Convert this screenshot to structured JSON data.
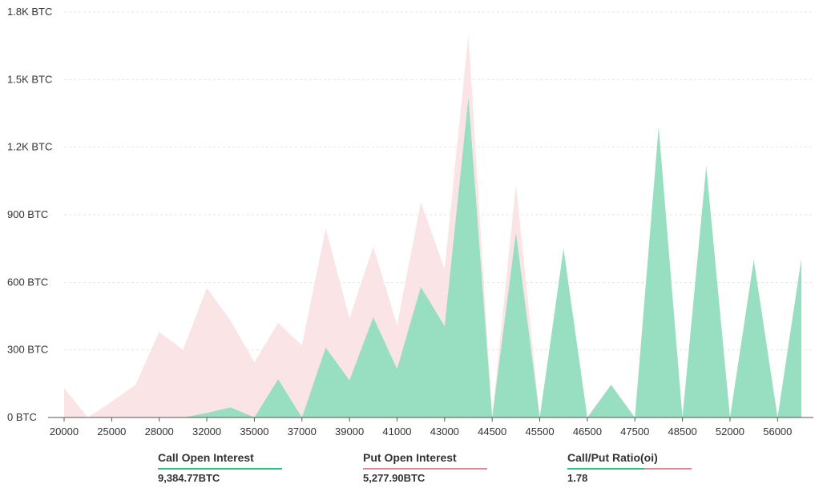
{
  "colors": {
    "call": "#97dfc0",
    "call_line": "#2fbf7f",
    "put": "#fbe4e6",
    "put_line": "#e08a96",
    "grid": "#e4e4e4"
  },
  "chart_data": {
    "type": "area",
    "y_unit_suffix": " BTC",
    "ylim": [
      0,
      1800
    ],
    "y_ticks": [
      "0 BTC",
      "300 BTC",
      "600 BTC",
      "900 BTC",
      "1.2K BTC",
      "1.5K BTC",
      "1.8K BTC"
    ],
    "y_tick_values": [
      0,
      300,
      600,
      900,
      1200,
      1500,
      1800
    ],
    "grid": "horizontal dashed",
    "x_tick_labels": [
      "20000",
      "25000",
      "28000",
      "32000",
      "35000",
      "37000",
      "39000",
      "41000",
      "43000",
      "44500",
      "45500",
      "46500",
      "47500",
      "48500",
      "52000",
      "56000"
    ],
    "strikes": [
      "20000",
      "22000",
      "25000",
      "26000",
      "28000",
      "30000",
      "32000",
      "34000",
      "35000",
      "36000",
      "37000",
      "38000",
      "39000",
      "40000",
      "41000",
      "42000",
      "43000",
      "44000",
      "44500",
      "45000",
      "45500",
      "46000",
      "46500",
      "47000",
      "47500",
      "48000",
      "48500",
      "50000",
      "52000",
      "54000",
      "56000",
      "58000"
    ],
    "series": [
      {
        "name": "Put Open Interest",
        "values": [
          130,
          0,
          70,
          145,
          380,
          300,
          575,
          430,
          245,
          420,
          320,
          840,
          440,
          760,
          410,
          955,
          660,
          1700,
          0,
          1035,
          0,
          0,
          0,
          0,
          0,
          0,
          0,
          0,
          0,
          0,
          0,
          0
        ]
      },
      {
        "name": "Call Open Interest",
        "values": [
          0,
          0,
          0,
          0,
          0,
          0,
          20,
          45,
          0,
          170,
          0,
          310,
          165,
          445,
          215,
          580,
          405,
          1420,
          0,
          820,
          0,
          750,
          0,
          145,
          0,
          1290,
          0,
          1115,
          0,
          700,
          0,
          705
        ]
      }
    ]
  },
  "stats": {
    "call_label": "Call Open Interest",
    "call_value": "9,384.77BTC",
    "put_label": "Put Open Interest",
    "put_value": "5,277.90BTC",
    "ratio_label": "Call/Put Ratio(oi)",
    "ratio_value": "1.78"
  }
}
